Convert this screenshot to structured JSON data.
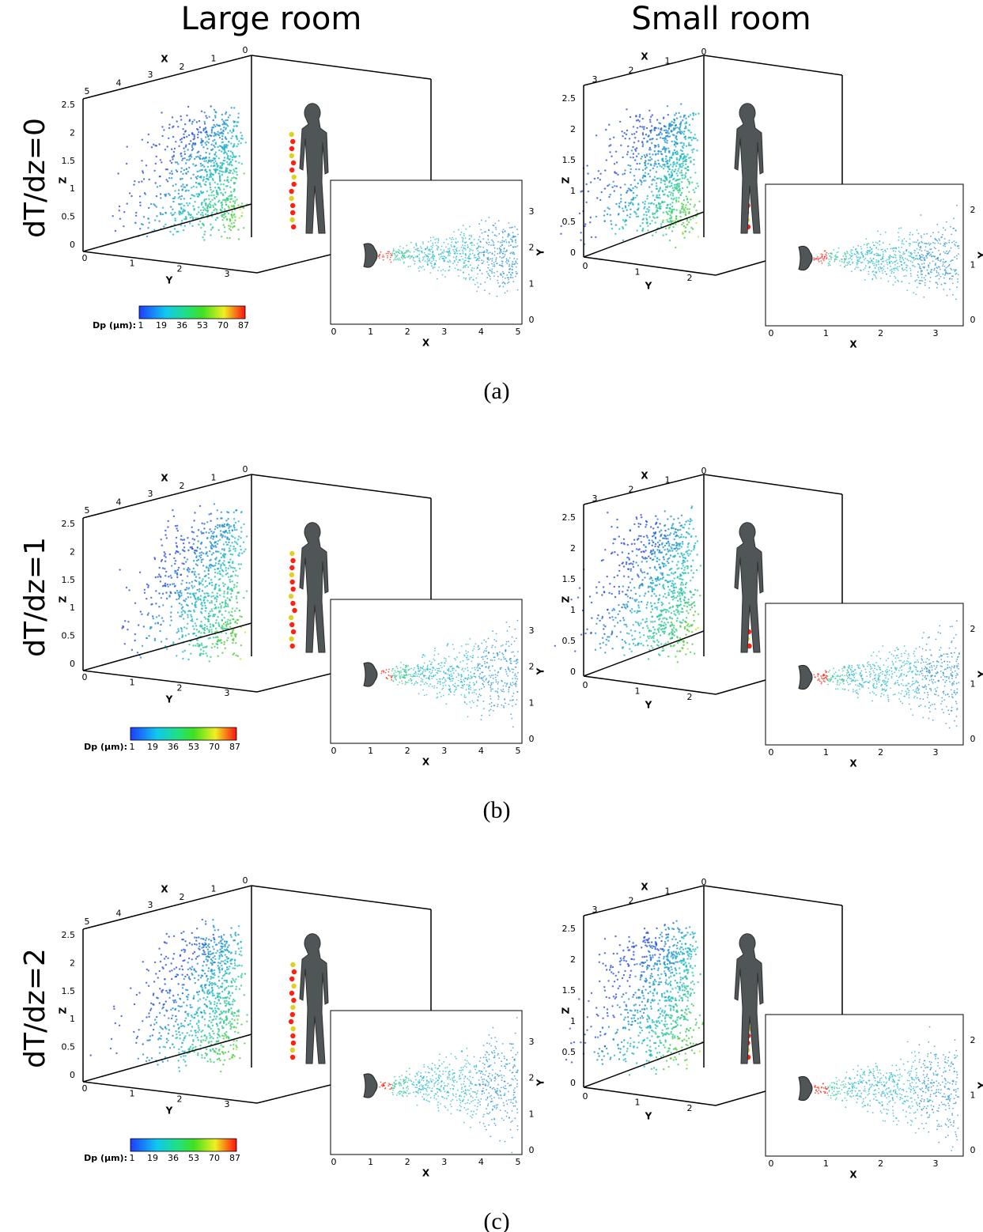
{
  "columns": [
    "Large room",
    "Small room"
  ],
  "rows": [
    {
      "label": "dT/dz=0",
      "caption": "(a)"
    },
    {
      "label": "dT/dz=1",
      "caption": "(b)"
    },
    {
      "label": "dT/dz=2",
      "caption": "(c)"
    }
  ],
  "axis_titles": {
    "x": "X",
    "y": "Y",
    "z": "Z"
  },
  "large_room": {
    "x_ticks": [
      "5",
      "4",
      "3",
      "2",
      "1",
      "0"
    ],
    "y_ticks": [
      "0",
      "1",
      "2",
      "3"
    ],
    "z_ticks": [
      "0",
      "0.5",
      "1",
      "1.5",
      "2",
      "2.5"
    ],
    "inset_x_ticks": [
      "0",
      "1",
      "2",
      "3",
      "4",
      "5"
    ],
    "inset_y_ticks": [
      "0",
      "1",
      "2",
      "3"
    ]
  },
  "small_room": {
    "x_ticks": [
      "3",
      "2",
      "1",
      "0"
    ],
    "y_ticks": [
      "0",
      "1",
      "2"
    ],
    "z_ticks": [
      "0",
      "0.5",
      "1",
      "1.5",
      "2",
      "2.5"
    ],
    "inset_x_ticks": [
      "0",
      "1",
      "2",
      "3"
    ],
    "inset_y_ticks": [
      "0",
      "1",
      "2"
    ]
  },
  "colorbar": {
    "label": "Dp (μm):",
    "ticks": [
      "1",
      "19",
      "36",
      "53",
      "70",
      "87"
    ]
  }
}
